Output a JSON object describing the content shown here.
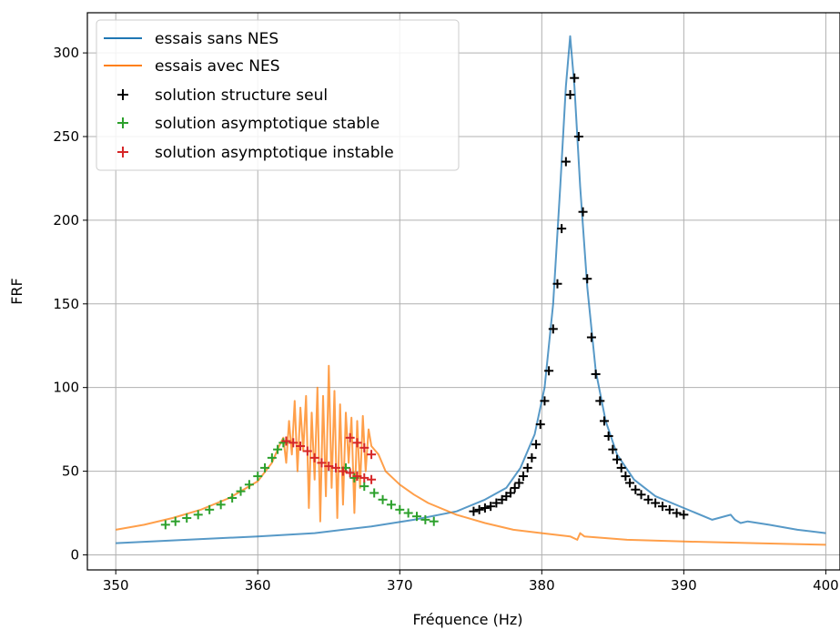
{
  "chart_data": {
    "type": "line",
    "title": "",
    "xlabel": "Fréquence (Hz)",
    "ylabel": "FRF",
    "xlim": [
      348,
      401
    ],
    "ylim": [
      -9,
      324
    ],
    "xticks": [
      350,
      360,
      370,
      380,
      390,
      400
    ],
    "yticks": [
      0,
      50,
      100,
      150,
      200,
      250,
      300
    ],
    "grid": true,
    "legend_position": "top-left",
    "colors": {
      "blue": "#1f77b4",
      "orange": "#ff7f0e",
      "black": "#000000",
      "green": "#2ca02c",
      "red": "#d62728",
      "grid": "#b0b0b0"
    },
    "series": [
      {
        "name": "essais sans NES",
        "kind": "line",
        "color": "#1f77b4",
        "x": [
          350,
          355,
          360,
          364,
          368,
          371,
          374,
          376,
          377.5,
          378.5,
          379.5,
          380.2,
          380.8,
          381.3,
          381.7,
          382.0,
          382.3,
          382.7,
          383.2,
          383.8,
          384.5,
          385.3,
          386.5,
          388,
          390,
          392,
          393.3,
          393.6,
          394,
          394.5,
          396,
          398,
          400
        ],
        "y": [
          7,
          9,
          11,
          13,
          17,
          21,
          26,
          33,
          40,
          52,
          72,
          100,
          150,
          220,
          280,
          310,
          280,
          220,
          160,
          110,
          80,
          60,
          45,
          35,
          28,
          21,
          24,
          21,
          19,
          20,
          18,
          15,
          13
        ]
      },
      {
        "name": "essais avec NES",
        "kind": "line",
        "color": "#ff7f0e",
        "x": [
          350,
          352,
          354,
          356,
          358,
          360,
          361,
          361.5,
          361.8,
          362.0,
          362.2,
          362.4,
          362.6,
          362.8,
          363.0,
          363.2,
          363.4,
          363.6,
          363.8,
          364.0,
          364.2,
          364.4,
          364.6,
          364.8,
          365.0,
          365.2,
          365.4,
          365.6,
          365.8,
          366.0,
          366.2,
          366.4,
          366.6,
          366.8,
          367.0,
          367.2,
          367.4,
          367.6,
          367.8,
          368.0,
          368.5,
          369,
          370,
          371,
          372,
          374,
          376,
          378,
          380,
          382,
          382.5,
          382.7,
          383,
          386,
          390,
          395,
          400
        ],
        "y": [
          15,
          18,
          22,
          27,
          34,
          44,
          55,
          65,
          70,
          55,
          80,
          60,
          92,
          50,
          88,
          62,
          95,
          28,
          85,
          45,
          100,
          20,
          95,
          35,
          113,
          40,
          98,
          22,
          90,
          30,
          85,
          55,
          82,
          25,
          80,
          40,
          83,
          50,
          75,
          65,
          60,
          50,
          42,
          36,
          31,
          24,
          19,
          15,
          13,
          11,
          9,
          13,
          11,
          9,
          8,
          7,
          6
        ]
      },
      {
        "name": "solution structure seul",
        "kind": "scatter",
        "color": "#000000",
        "x": [
          375.2,
          375.6,
          376.0,
          376.4,
          376.8,
          377.2,
          377.5,
          377.8,
          378.1,
          378.4,
          378.7,
          379.0,
          379.3,
          379.6,
          379.9,
          380.2,
          380.5,
          380.8,
          381.1,
          381.4,
          381.7,
          382.0,
          382.3,
          382.6,
          382.9,
          383.2,
          383.5,
          383.8,
          384.1,
          384.4,
          384.7,
          385.0,
          385.3,
          385.6,
          385.9,
          386.2,
          386.6,
          387.0,
          387.5,
          388.0,
          388.5,
          389.0,
          389.5,
          390.0
        ],
        "y": [
          26,
          27,
          28,
          29,
          31,
          33,
          35,
          37,
          40,
          43,
          47,
          52,
          58,
          66,
          78,
          92,
          110,
          135,
          162,
          195,
          235,
          275,
          285,
          250,
          205,
          165,
          130,
          108,
          92,
          80,
          71,
          63,
          57,
          52,
          47,
          43,
          39,
          36,
          33,
          31,
          29,
          27,
          25,
          24
        ]
      },
      {
        "name": "solution asymptotique stable",
        "kind": "scatter",
        "color": "#2ca02c",
        "x": [
          353.5,
          354.2,
          355.0,
          355.8,
          356.6,
          357.4,
          358.2,
          358.8,
          359.4,
          360.0,
          360.5,
          361.0,
          361.4,
          361.8,
          366.2,
          366.8,
          367.5,
          368.2,
          368.8,
          369.4,
          370.0,
          370.6,
          371.2,
          371.8,
          372.4
        ],
        "y": [
          18,
          20,
          22,
          24,
          27,
          30,
          34,
          38,
          42,
          47,
          52,
          58,
          63,
          67,
          52,
          46,
          41,
          37,
          33,
          30,
          27,
          25,
          23,
          21,
          20
        ]
      },
      {
        "name": "solution asymptotique instable",
        "kind": "scatter",
        "color": "#d62728",
        "x": [
          362.0,
          362.5,
          363.0,
          363.5,
          364.0,
          364.5,
          365.0,
          365.5,
          366.0,
          366.5,
          367.0,
          367.5,
          368.0,
          366.5,
          367.0,
          367.5,
          368.0
        ],
        "y": [
          68,
          67,
          65,
          62,
          58,
          55,
          53,
          52,
          50,
          49,
          47,
          46,
          45,
          70,
          67,
          64,
          60
        ]
      }
    ]
  }
}
